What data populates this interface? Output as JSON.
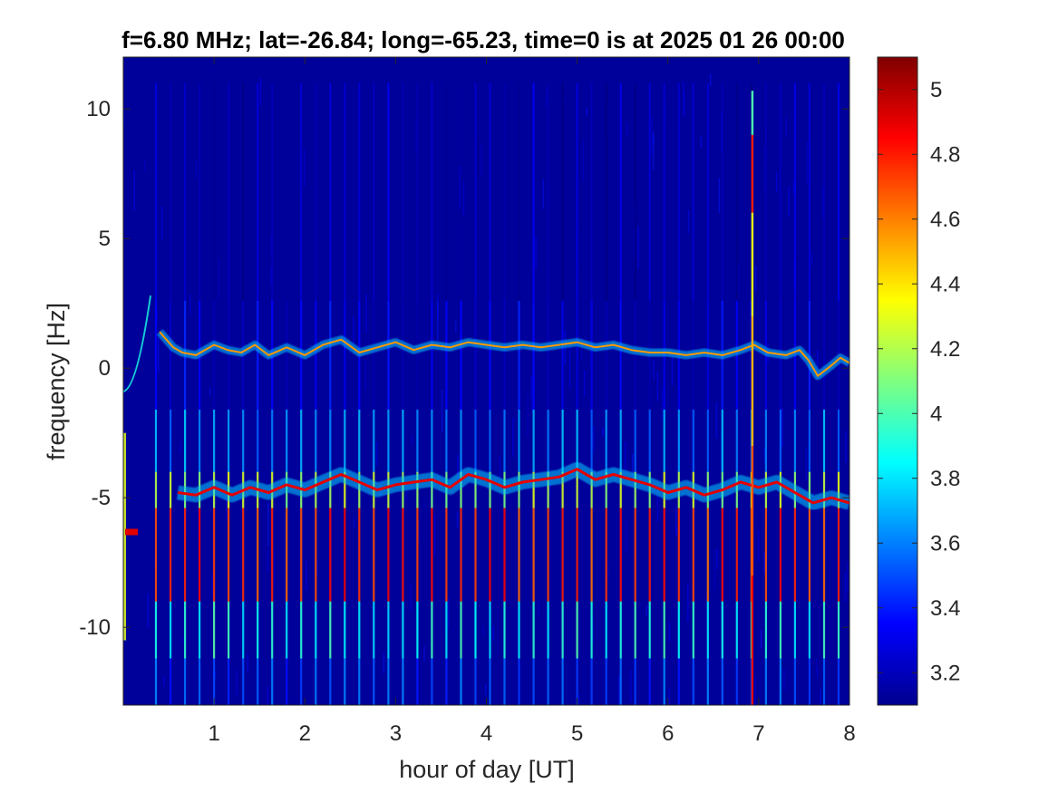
{
  "chart_data": {
    "type": "heatmap",
    "title": "f=6.80 MHz;  lat=-26.84; long=-65.23, time=0 is at 2025 01 26 00:00",
    "xlabel": "hour of day [UT]",
    "ylabel": "frequency [Hz]",
    "xlim": [
      0,
      8
    ],
    "ylim": [
      -13,
      12
    ],
    "x_ticks": [
      1,
      2,
      3,
      4,
      5,
      6,
      7,
      8
    ],
    "y_ticks": [
      -10,
      -5,
      0,
      5,
      10
    ],
    "colormap": "jet",
    "color_range": [
      3.1,
      5.1
    ],
    "colorbar_ticks": [
      3.2,
      3.4,
      3.6,
      3.8,
      4,
      4.2,
      4.4,
      4.6,
      4.8,
      5
    ],
    "background_value": 3.15,
    "upper_trace": {
      "hour": [
        0.4,
        0.55,
        0.65,
        0.8,
        1.0,
        1.15,
        1.3,
        1.45,
        1.6,
        1.8,
        2.0,
        2.2,
        2.4,
        2.6,
        2.8,
        3.0,
        3.2,
        3.4,
        3.6,
        3.8,
        4.0,
        4.2,
        4.4,
        4.6,
        4.8,
        5.0,
        5.2,
        5.4,
        5.6,
        5.8,
        6.0,
        6.2,
        6.4,
        6.6,
        6.8,
        6.95,
        7.1,
        7.3,
        7.45,
        7.55,
        7.65,
        7.8,
        7.9,
        8.0
      ],
      "frequency_hz": [
        1.4,
        0.8,
        0.6,
        0.5,
        0.9,
        0.7,
        0.6,
        0.9,
        0.5,
        0.8,
        0.5,
        0.9,
        1.1,
        0.6,
        0.8,
        1.0,
        0.7,
        0.9,
        0.8,
        1.0,
        0.9,
        0.8,
        0.9,
        0.8,
        0.9,
        1.0,
        0.8,
        0.9,
        0.7,
        0.6,
        0.6,
        0.5,
        0.6,
        0.5,
        0.7,
        0.9,
        0.6,
        0.5,
        0.7,
        0.3,
        -0.3,
        0.1,
        0.4,
        0.2
      ]
    },
    "lower_trace": {
      "hour": [
        0.6,
        0.8,
        1.0,
        1.2,
        1.4,
        1.6,
        1.8,
        2.0,
        2.2,
        2.4,
        2.6,
        2.8,
        3.0,
        3.2,
        3.4,
        3.6,
        3.8,
        4.0,
        4.2,
        4.4,
        4.6,
        4.8,
        5.0,
        5.2,
        5.4,
        5.6,
        5.8,
        6.0,
        6.2,
        6.4,
        6.6,
        6.8,
        7.0,
        7.2,
        7.4,
        7.6,
        7.8,
        8.0
      ],
      "frequency_hz": [
        -4.8,
        -4.9,
        -4.6,
        -4.9,
        -4.6,
        -4.8,
        -4.5,
        -4.7,
        -4.4,
        -4.1,
        -4.4,
        -4.7,
        -4.5,
        -4.4,
        -4.3,
        -4.6,
        -4.1,
        -4.3,
        -4.6,
        -4.4,
        -4.3,
        -4.2,
        -3.9,
        -4.3,
        -4.1,
        -4.3,
        -4.5,
        -4.8,
        -4.6,
        -4.9,
        -4.7,
        -4.4,
        -4.6,
        -4.4,
        -4.8,
        -5.2,
        -5.0,
        -5.2
      ]
    },
    "vertical_striations": {
      "spacing_hours": 0.16,
      "start_hour": 0.36,
      "end_hour": 7.92,
      "center_frequency_hz": -7.0
    },
    "spike": {
      "hour": 6.93,
      "frequency_range_hz": [
        -13,
        10.7
      ]
    }
  }
}
